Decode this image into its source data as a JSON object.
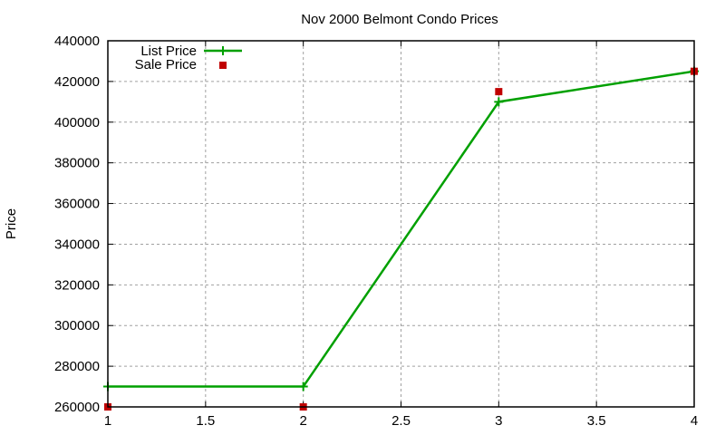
{
  "chart_data": {
    "type": "line",
    "title": "Nov 2000 Belmont Condo Prices",
    "xlabel": "",
    "ylabel": "Price",
    "x": [
      1,
      2,
      3,
      4
    ],
    "xlim": [
      1,
      4
    ],
    "ylim": [
      260000,
      440000
    ],
    "xticks": [
      1,
      1.5,
      2,
      2.5,
      3,
      3.5,
      4
    ],
    "xtick_labels": [
      "1",
      "1.5",
      "2",
      "2.5",
      "3",
      "3.5",
      "4"
    ],
    "yticks": [
      260000,
      280000,
      300000,
      320000,
      340000,
      360000,
      380000,
      400000,
      420000,
      440000
    ],
    "ytick_labels": [
      "260000",
      "280000",
      "300000",
      "320000",
      "340000",
      "360000",
      "380000",
      "400000",
      "420000",
      "440000"
    ],
    "grid": true,
    "legend_position": "top-left",
    "series": [
      {
        "name": "List Price",
        "style": "linespoints",
        "marker": "plus",
        "color": "#00a000",
        "values": [
          270000,
          270000,
          410000,
          425000
        ]
      },
      {
        "name": "Sale Price",
        "style": "points",
        "marker": "square",
        "color": "#c00000",
        "values": [
          260000,
          260000,
          415000,
          425000
        ]
      }
    ]
  },
  "legend": {
    "items": [
      {
        "label": "List Price"
      },
      {
        "label": "Sale Price"
      }
    ]
  }
}
